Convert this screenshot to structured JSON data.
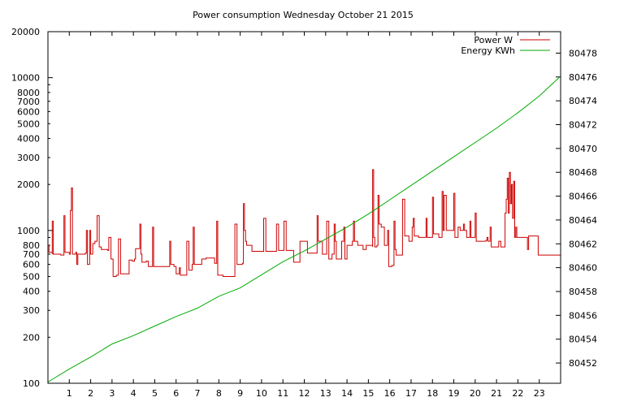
{
  "chart_data": {
    "type": "line",
    "title": "Power consumption Wednesday October 21 2015",
    "x_axis": {
      "min": 0,
      "max": 24,
      "ticks": [
        1,
        2,
        3,
        4,
        5,
        6,
        7,
        8,
        9,
        10,
        11,
        12,
        13,
        14,
        15,
        16,
        17,
        18,
        19,
        20,
        21,
        22,
        23
      ],
      "grid": false
    },
    "y_left": {
      "scale": "log",
      "min": 100,
      "max": 20000,
      "unit": "W",
      "ticks": [
        100,
        200,
        300,
        400,
        500,
        600,
        700,
        800,
        1000,
        2000,
        3000,
        4000,
        5000,
        6000,
        7000,
        8000,
        10000,
        20000
      ]
    },
    "y_right": {
      "scale": "linear",
      "min": 80450.3,
      "max": 80479.8,
      "unit": "KWh",
      "ticks": [
        80452,
        80454,
        80456,
        80458,
        80460,
        80462,
        80464,
        80466,
        80468,
        80470,
        80472,
        80474,
        80476,
        80478
      ]
    },
    "legend": {
      "position": "top-right"
    },
    "series": [
      {
        "name": "Power W",
        "color": "#cc0000",
        "axis": "left",
        "points": [
          [
            0,
            800
          ],
          [
            0.05,
            720
          ],
          [
            0.2,
            700
          ],
          [
            0.2,
            1150
          ],
          [
            0.25,
            700
          ],
          [
            0.6,
            690
          ],
          [
            0.75,
            1250
          ],
          [
            0.8,
            720
          ],
          [
            1.0,
            700
          ],
          [
            1.05,
            1350
          ],
          [
            1.1,
            1900
          ],
          [
            1.15,
            700
          ],
          [
            1.3,
            720
          ],
          [
            1.35,
            600
          ],
          [
            1.4,
            700
          ],
          [
            1.75,
            710
          ],
          [
            1.8,
            1000
          ],
          [
            1.85,
            600
          ],
          [
            1.95,
            1000
          ],
          [
            2.0,
            700
          ],
          [
            2.1,
            820
          ],
          [
            2.2,
            850
          ],
          [
            2.3,
            1250
          ],
          [
            2.4,
            780
          ],
          [
            2.5,
            750
          ],
          [
            2.8,
            740
          ],
          [
            2.85,
            900
          ],
          [
            2.95,
            650
          ],
          [
            3.05,
            500
          ],
          [
            3.2,
            510
          ],
          [
            3.3,
            880
          ],
          [
            3.4,
            520
          ],
          [
            3.75,
            520
          ],
          [
            3.8,
            640
          ],
          [
            3.95,
            630
          ],
          [
            4.05,
            650
          ],
          [
            4.1,
            760
          ],
          [
            4.3,
            1100
          ],
          [
            4.35,
            700
          ],
          [
            4.4,
            620
          ],
          [
            4.6,
            630
          ],
          [
            4.7,
            580
          ],
          [
            4.9,
            1050
          ],
          [
            4.95,
            580
          ],
          [
            5.3,
            580
          ],
          [
            5.7,
            580
          ],
          [
            5.7,
            850
          ],
          [
            5.75,
            600
          ],
          [
            5.9,
            580
          ],
          [
            6.0,
            520
          ],
          [
            6.15,
            570
          ],
          [
            6.2,
            510
          ],
          [
            6.45,
            510
          ],
          [
            6.5,
            850
          ],
          [
            6.6,
            550
          ],
          [
            6.75,
            600
          ],
          [
            6.8,
            1050
          ],
          [
            6.85,
            600
          ],
          [
            7.0,
            600
          ],
          [
            7.2,
            650
          ],
          [
            7.4,
            660
          ],
          [
            7.8,
            660
          ],
          [
            7.8,
            610
          ],
          [
            7.9,
            1150
          ],
          [
            7.95,
            510
          ],
          [
            8.2,
            500
          ],
          [
            8.75,
            510
          ],
          [
            8.75,
            1100
          ],
          [
            8.85,
            600
          ],
          [
            9.1,
            610
          ],
          [
            9.15,
            1500
          ],
          [
            9.2,
            1000
          ],
          [
            9.25,
            850
          ],
          [
            9.3,
            800
          ],
          [
            9.4,
            800
          ],
          [
            9.55,
            730
          ],
          [
            9.95,
            730
          ],
          [
            10.1,
            1200
          ],
          [
            10.2,
            730
          ],
          [
            10.6,
            730
          ],
          [
            10.7,
            1100
          ],
          [
            10.8,
            740
          ],
          [
            11.0,
            740
          ],
          [
            11.05,
            1150
          ],
          [
            11.15,
            740
          ],
          [
            11.5,
            740
          ],
          [
            11.5,
            620
          ],
          [
            11.8,
            620
          ],
          [
            11.8,
            850
          ],
          [
            12.05,
            850
          ],
          [
            12.15,
            710
          ],
          [
            12.6,
            710
          ],
          [
            12.6,
            1250
          ],
          [
            12.65,
            850
          ],
          [
            12.75,
            850
          ],
          [
            12.85,
            700
          ],
          [
            13.0,
            700
          ],
          [
            13.05,
            1150
          ],
          [
            13.15,
            650
          ],
          [
            13.3,
            700
          ],
          [
            13.4,
            1100
          ],
          [
            13.45,
            850
          ],
          [
            13.5,
            650
          ],
          [
            13.75,
            650
          ],
          [
            13.75,
            850
          ],
          [
            13.85,
            1050
          ],
          [
            13.9,
            650
          ],
          [
            14.0,
            650
          ],
          [
            14.0,
            800
          ],
          [
            14.25,
            850
          ],
          [
            14.3,
            1150
          ],
          [
            14.35,
            850
          ],
          [
            14.45,
            850
          ],
          [
            14.5,
            800
          ],
          [
            14.7,
            800
          ],
          [
            14.75,
            750
          ],
          [
            14.9,
            800
          ],
          [
            15.2,
            780
          ],
          [
            15.2,
            2500
          ],
          [
            15.25,
            900
          ],
          [
            15.3,
            780
          ],
          [
            15.4,
            800
          ],
          [
            15.45,
            1700
          ],
          [
            15.5,
            1100
          ],
          [
            15.6,
            1050
          ],
          [
            15.75,
            800
          ],
          [
            15.85,
            800
          ],
          [
            15.9,
            1000
          ],
          [
            15.95,
            580
          ],
          [
            16.1,
            590
          ],
          [
            16.2,
            1150
          ],
          [
            16.25,
            750
          ],
          [
            16.3,
            690
          ],
          [
            16.6,
            690
          ],
          [
            16.6,
            1600
          ],
          [
            16.7,
            920
          ],
          [
            16.9,
            850
          ],
          [
            17.05,
            1050
          ],
          [
            17.1,
            1200
          ],
          [
            17.15,
            920
          ],
          [
            17.3,
            920
          ],
          [
            17.35,
            900
          ],
          [
            17.6,
            900
          ],
          [
            17.7,
            1200
          ],
          [
            17.75,
            900
          ],
          [
            17.95,
            900
          ],
          [
            18.0,
            1650
          ],
          [
            18.05,
            950
          ],
          [
            18.3,
            900
          ],
          [
            18.4,
            900
          ],
          [
            18.45,
            1800
          ],
          [
            18.5,
            1000
          ],
          [
            18.55,
            1700
          ],
          [
            18.65,
            1000
          ],
          [
            18.9,
            1000
          ],
          [
            19.0,
            1750
          ],
          [
            19.05,
            900
          ],
          [
            19.2,
            1050
          ],
          [
            19.3,
            1000
          ],
          [
            19.45,
            1100
          ],
          [
            19.5,
            1000
          ],
          [
            19.6,
            900
          ],
          [
            19.75,
            1150
          ],
          [
            19.8,
            900
          ],
          [
            19.95,
            900
          ],
          [
            20.0,
            1300
          ],
          [
            20.05,
            850
          ],
          [
            20.5,
            860
          ],
          [
            20.55,
            900
          ],
          [
            20.6,
            850
          ],
          [
            20.7,
            1050
          ],
          [
            20.75,
            780
          ],
          [
            21.05,
            780
          ],
          [
            21.1,
            850
          ],
          [
            21.2,
            780
          ],
          [
            21.35,
            780
          ],
          [
            21.4,
            1300
          ],
          [
            21.45,
            1600
          ],
          [
            21.5,
            2200
          ],
          [
            21.55,
            1300
          ],
          [
            21.6,
            2400
          ],
          [
            21.65,
            1500
          ],
          [
            21.7,
            2000
          ],
          [
            21.75,
            1200
          ],
          [
            21.8,
            2100
          ],
          [
            21.85,
            900
          ],
          [
            21.9,
            1050
          ],
          [
            21.95,
            900
          ],
          [
            22.1,
            900
          ],
          [
            22.4,
            900
          ],
          [
            22.45,
            750
          ],
          [
            22.5,
            920
          ],
          [
            22.9,
            920
          ],
          [
            22.95,
            690
          ],
          [
            23.3,
            690
          ]
        ]
      },
      {
        "name": "Energy KWh",
        "color": "#00aa00",
        "axis": "right",
        "points": [
          [
            0,
            80450.4
          ],
          [
            1,
            80451.5
          ],
          [
            2,
            80452.5
          ],
          [
            3,
            80453.6
          ],
          [
            4,
            80454.3
          ],
          [
            5,
            80455.1
          ],
          [
            6,
            80455.9
          ],
          [
            7,
            80456.6
          ],
          [
            8,
            80457.6
          ],
          [
            9,
            80458.3
          ],
          [
            10,
            80459.4
          ],
          [
            11,
            80460.5
          ],
          [
            12,
            80461.4
          ],
          [
            13,
            80462.4
          ],
          [
            14,
            80463.4
          ],
          [
            15,
            80464.5
          ],
          [
            16,
            80465.7
          ],
          [
            17,
            80466.9
          ],
          [
            18,
            80468.1
          ],
          [
            19,
            80469.3
          ],
          [
            20,
            80470.5
          ],
          [
            21,
            80471.7
          ],
          [
            22,
            80473.0
          ],
          [
            23,
            80474.4
          ],
          [
            23.3,
            80474.9
          ]
        ]
      }
    ]
  }
}
